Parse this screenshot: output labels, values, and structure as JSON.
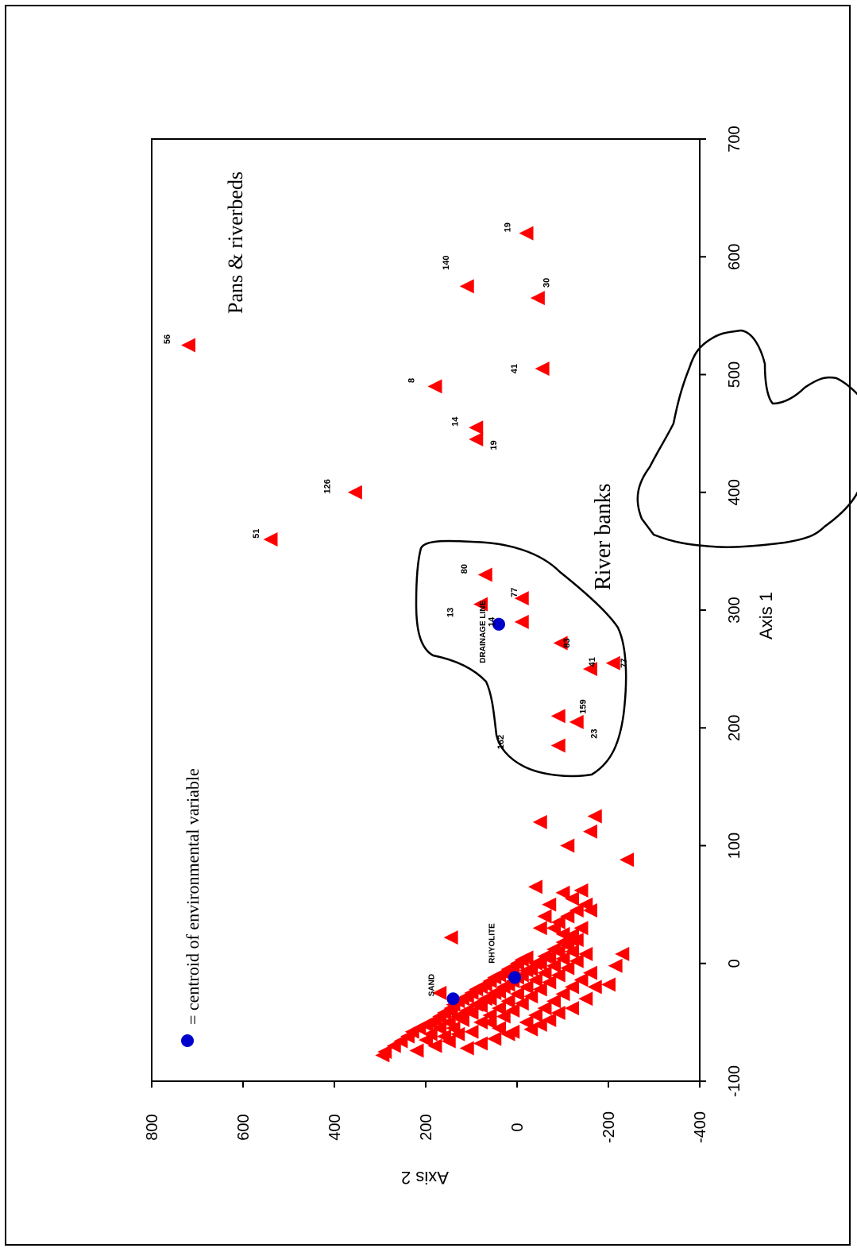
{
  "chart_data": {
    "type": "scatter",
    "orientation": "rotated-90-clockwise",
    "xlabel": "Axis 1",
    "ylabel": "Axis 2",
    "xlim": [
      -100,
      700
    ],
    "ylim": [
      -400,
      800
    ],
    "xticks": [
      -100,
      0,
      100,
      200,
      300,
      400,
      500,
      600,
      700
    ],
    "yticks": [
      -400,
      -200,
      0,
      200,
      400,
      600,
      800
    ],
    "xtick_labels": [
      "-100",
      "0",
      "100",
      "200",
      "300",
      "400",
      "500",
      "600",
      "700"
    ],
    "ytick_labels": [
      "-400",
      "-200",
      "0",
      "200",
      "400",
      "600",
      "800"
    ],
    "colors": {
      "sites": "#ff0000",
      "centroids": "#0000cc",
      "lines": "#000000"
    },
    "legend": {
      "position": "top-left",
      "text": "= centroid of environmental variable"
    },
    "group_labels": [
      {
        "name": "Pans & riverbeds"
      },
      {
        "name": "River banks"
      }
    ],
    "series": [
      {
        "name": "sites",
        "marker": "triangle",
        "points": [
          [
            -78,
            295
          ],
          [
            -75,
            290
          ],
          [
            -70,
            270
          ],
          [
            -66,
            255
          ],
          [
            -62,
            240
          ],
          [
            -58,
            230
          ],
          [
            -55,
            215
          ],
          [
            -52,
            200
          ],
          [
            -50,
            190
          ],
          [
            -48,
            180
          ],
          [
            -45,
            170
          ],
          [
            -42,
            160
          ],
          [
            -40,
            150
          ],
          [
            -38,
            145
          ],
          [
            -35,
            140
          ],
          [
            -32,
            130
          ],
          [
            -30,
            120
          ],
          [
            -28,
            110
          ],
          [
            -25,
            100
          ],
          [
            -22,
            90
          ],
          [
            -20,
            80
          ],
          [
            -18,
            70
          ],
          [
            -15,
            60
          ],
          [
            -12,
            50
          ],
          [
            -10,
            40
          ],
          [
            -8,
            30
          ],
          [
            -5,
            20
          ],
          [
            -3,
            10
          ],
          [
            0,
            0
          ],
          [
            3,
            -10
          ],
          [
            5,
            -20
          ],
          [
            -65,
            200
          ],
          [
            -60,
            190
          ],
          [
            -55,
            170
          ],
          [
            -50,
            150
          ],
          [
            -45,
            130
          ],
          [
            -40,
            110
          ],
          [
            -35,
            90
          ],
          [
            -30,
            70
          ],
          [
            -25,
            50
          ],
          [
            -20,
            30
          ],
          [
            -15,
            10
          ],
          [
            -10,
            -10
          ],
          [
            -5,
            -30
          ],
          [
            0,
            -50
          ],
          [
            5,
            -70
          ],
          [
            10,
            -90
          ],
          [
            15,
            -110
          ],
          [
            20,
            -130
          ],
          [
            -70,
            180
          ],
          [
            -62,
            160
          ],
          [
            -55,
            140
          ],
          [
            -48,
            120
          ],
          [
            -42,
            100
          ],
          [
            -36,
            80
          ],
          [
            -30,
            60
          ],
          [
            -24,
            40
          ],
          [
            -18,
            20
          ],
          [
            -12,
            0
          ],
          [
            -6,
            -20
          ],
          [
            0,
            -40
          ],
          [
            6,
            -60
          ],
          [
            12,
            -80
          ],
          [
            18,
            -100
          ],
          [
            24,
            -120
          ],
          [
            30,
            -140
          ],
          [
            -58,
            100
          ],
          [
            -50,
            80
          ],
          [
            -44,
            60
          ],
          [
            -38,
            40
          ],
          [
            -32,
            20
          ],
          [
            -26,
            0
          ],
          [
            -20,
            -20
          ],
          [
            -14,
            -40
          ],
          [
            -8,
            -60
          ],
          [
            -2,
            -80
          ],
          [
            4,
            -100
          ],
          [
            10,
            -120
          ],
          [
            -45,
            30
          ],
          [
            -40,
            10
          ],
          [
            -34,
            -10
          ],
          [
            -28,
            -30
          ],
          [
            -22,
            -50
          ],
          [
            -16,
            -70
          ],
          [
            -10,
            -90
          ],
          [
            -4,
            -110
          ],
          [
            2,
            -130
          ],
          [
            8,
            -150
          ],
          [
            -50,
            -20
          ],
          [
            -44,
            -40
          ],
          [
            -38,
            -60
          ],
          [
            -32,
            -80
          ],
          [
            -26,
            -100
          ],
          [
            -20,
            -120
          ],
          [
            -14,
            -140
          ],
          [
            -8,
            -160
          ],
          [
            -30,
            -150
          ],
          [
            -20,
            -170
          ],
          [
            20,
            -120
          ],
          [
            25,
            -100
          ],
          [
            30,
            -80
          ],
          [
            35,
            -90
          ],
          [
            40,
            -110
          ],
          [
            45,
            -130
          ],
          [
            30,
            -50
          ],
          [
            40,
            -60
          ],
          [
            50,
            -70
          ],
          [
            55,
            -120
          ],
          [
            60,
            -100
          ],
          [
            62,
            -140
          ],
          [
            65,
            -40
          ],
          [
            50,
            -150
          ],
          [
            45,
            -160
          ],
          [
            -60,
            130
          ],
          [
            -25,
            170
          ],
          [
            22,
            145
          ],
          [
            -18,
            -200
          ],
          [
            -2,
            -215
          ],
          [
            8,
            -230
          ],
          [
            -45,
            120
          ],
          [
            -50,
            60
          ],
          [
            -55,
            40
          ],
          [
            -60,
            20
          ],
          [
            -38,
            -120
          ],
          [
            -42,
            -90
          ],
          [
            -48,
            -70
          ],
          [
            -52,
            -50
          ],
          [
            -56,
            -30
          ],
          [
            -58,
            10
          ],
          [
            -64,
            50
          ],
          [
            -68,
            80
          ],
          [
            -72,
            110
          ],
          [
            -66,
            150
          ],
          [
            -74,
            220
          ],
          [
            88,
            -240
          ],
          [
            100,
            -110
          ],
          [
            112,
            -160
          ],
          [
            120,
            -50
          ],
          [
            125,
            -170
          ],
          [
            185,
            -90
          ],
          [
            205,
            -130
          ],
          [
            210,
            -90
          ],
          [
            250,
            -160
          ],
          [
            255,
            -210
          ],
          [
            272,
            -95
          ],
          [
            290,
            -10
          ],
          [
            305,
            80
          ],
          [
            310,
            -10
          ],
          [
            330,
            70
          ],
          [
            360,
            540
          ],
          [
            400,
            355
          ],
          [
            445,
            90
          ],
          [
            455,
            90
          ],
          [
            490,
            180
          ],
          [
            505,
            -55
          ],
          [
            525,
            720
          ],
          [
            565,
            -45
          ],
          [
            575,
            110
          ],
          [
            620,
            -20
          ]
        ]
      },
      {
        "name": "centroids",
        "marker": "circle",
        "points": [
          [
            -60,
            720
          ],
          [
            -30,
            140
          ],
          [
            -12,
            5
          ],
          [
            288,
            40
          ]
        ]
      }
    ],
    "site_labels": [
      {
        "text": "51",
        "x": 365,
        "y": 565
      },
      {
        "text": "126",
        "x": 405,
        "y": 410
      },
      {
        "text": "14",
        "x": 460,
        "y": 130
      },
      {
        "text": "19",
        "x": 440,
        "y": 45
      },
      {
        "text": "8",
        "x": 495,
        "y": 225
      },
      {
        "text": "56",
        "x": 530,
        "y": 760
      },
      {
        "text": "41",
        "x": 505,
        "y": 0
      },
      {
        "text": "140",
        "x": 595,
        "y": 150
      },
      {
        "text": "30",
        "x": 578,
        "y": -70
      },
      {
        "text": "19",
        "x": 625,
        "y": 15
      },
      {
        "text": "80",
        "x": 335,
        "y": 110
      },
      {
        "text": "77",
        "x": 315,
        "y": 0
      },
      {
        "text": "13",
        "x": 298,
        "y": 140
      },
      {
        "text": "14",
        "x": 290,
        "y": 50
      },
      {
        "text": "83",
        "x": 272,
        "y": -115
      },
      {
        "text": "41",
        "x": 256,
        "y": -170
      },
      {
        "text": "77",
        "x": 255,
        "y": -240
      },
      {
        "text": "159",
        "x": 218,
        "y": -150
      },
      {
        "text": "162",
        "x": 188,
        "y": 30
      },
      {
        "text": "23",
        "x": 195,
        "y": -175
      }
    ],
    "env_labels": [
      {
        "text": "SAND",
        "x": -28,
        "y": 182
      },
      {
        "text": "RHYOLITE",
        "x": 0,
        "y": 50
      },
      {
        "text": "DRAINAGE LINE",
        "x": 255,
        "y": 70
      }
    ]
  }
}
